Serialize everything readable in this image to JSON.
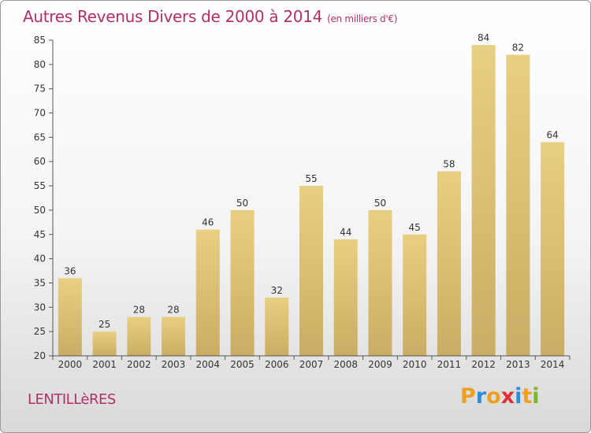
{
  "chart_data": {
    "type": "bar",
    "title": "Autres Revenus Divers de 2000 à 2014",
    "subtitle": "(en milliers d'€)",
    "categories": [
      "2000",
      "2001",
      "2002",
      "2003",
      "2004",
      "2005",
      "2006",
      "2007",
      "2008",
      "2009",
      "2010",
      "2011",
      "2012",
      "2013",
      "2014"
    ],
    "values": [
      36,
      25,
      28,
      28,
      46,
      50,
      32,
      55,
      44,
      50,
      45,
      58,
      84,
      82,
      64
    ],
    "ylim": [
      20,
      85
    ],
    "yticks": [
      20,
      25,
      30,
      35,
      40,
      45,
      50,
      55,
      60,
      65,
      70,
      75,
      80,
      85
    ],
    "grid": false,
    "bar_color": "#e9cf82",
    "bar_color_bottom": "#c9ad64"
  },
  "location": "LENTILLèRES",
  "logo": {
    "text": "Proxiti",
    "letters": [
      "P",
      "r",
      "o",
      "x",
      "i",
      "t",
      "i"
    ],
    "colors": [
      "#f0a020",
      "#2a8fd6",
      "#f0a020",
      "#e0303a",
      "#2a8fd6",
      "#f0a020",
      "#7ab829"
    ]
  }
}
